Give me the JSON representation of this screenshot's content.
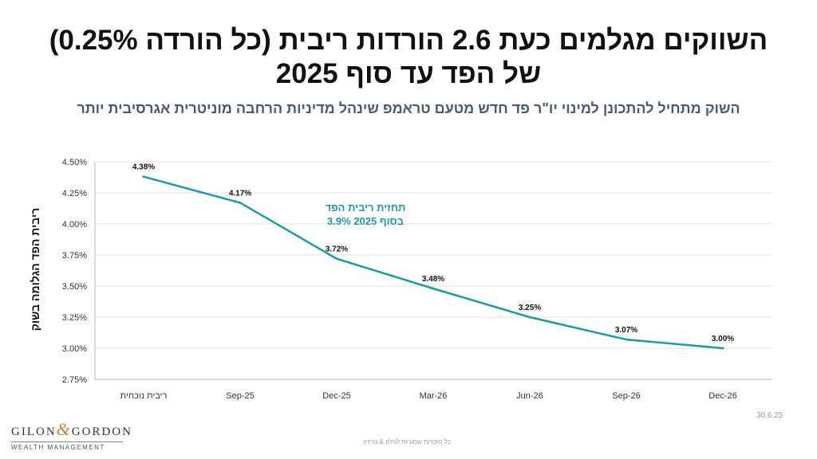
{
  "title": {
    "line1": "השווקים מגלמים כעת 2.6 הורדות ריבית (כל הורדה 0.25%)",
    "line2": "של הפד עד סוף  2025"
  },
  "subtitle": "השוק מתחיל להתכונן למינוי יו\"ר פד חדש מטעם טראמפ שינהל מדיניות הרחבה מוניטרית אגרסיבית יותר",
  "annotation": {
    "line1": "תחזית ריבית הפד",
    "line2": "בסוף 2025 3.9%"
  },
  "logo": {
    "left": "GILON",
    "amp": "&",
    "right": "GORDON",
    "sub": "WEALTH MANAGEMENT"
  },
  "date_note": "30.6.25",
  "footer_note": "כל הזכויות שמורות לגילון & גורדון",
  "chart_data": {
    "type": "line",
    "title": "",
    "xlabel": "",
    "ylabel": "ריבית הפד הגלומה בשוק",
    "categories": [
      "ריבית נוכחית",
      "Sep-25",
      "Dec-25",
      "Mar-26",
      "Jun-26",
      "Sep-26",
      "Dec-26"
    ],
    "series": [
      {
        "values": [
          4.38,
          4.17,
          3.72,
          3.48,
          3.25,
          3.07,
          3.0
        ],
        "labels": [
          "4.38%",
          "4.17%",
          "3.72%",
          "3.48%",
          "3.25%",
          "3.07%",
          "3.00%"
        ]
      }
    ],
    "ylim": [
      2.75,
      4.5
    ],
    "yticks": [
      2.75,
      3.0,
      3.25,
      3.5,
      3.75,
      4.0,
      4.25,
      4.5
    ],
    "ytick_labels": [
      "2.75%",
      "3.00%",
      "3.25%",
      "3.50%",
      "3.75%",
      "4.00%",
      "4.25%",
      "4.50%"
    ],
    "grid": true,
    "legend": "none",
    "line_color": "#1e9aa6",
    "grid_color": "#e3e3e3"
  }
}
